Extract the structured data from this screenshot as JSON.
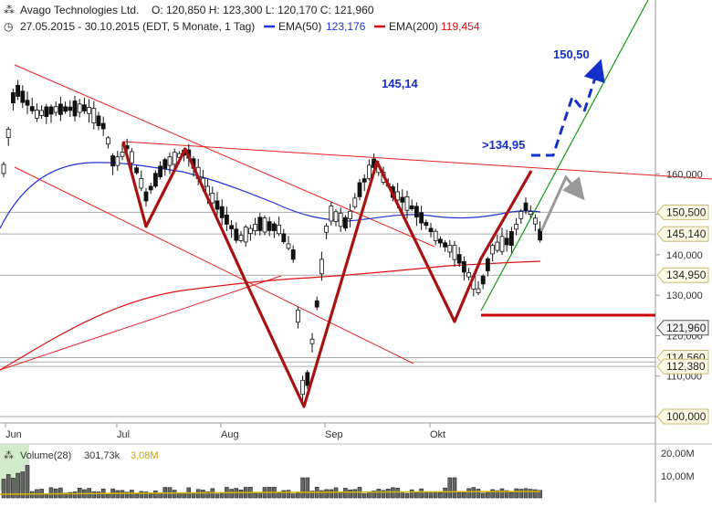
{
  "header": {
    "instrument": "Avago Technologies Ltd.",
    "ohlc": "O: 120,850  H: 123,300  L: 120,170  C: 121,960",
    "range": "27.05.2015 - 30.10.2015 (EDT, 5 Monate, 1 Tag)",
    "ema50_label": "EMA(50)",
    "ema50_value": "123,176",
    "ema200_label": "EMA(200)",
    "ema200_value": "119,454"
  },
  "volume_panel": {
    "title": "Volume(28)",
    "value1": "301,73k",
    "value2": "3,08M",
    "ticks": [
      "20,00M",
      "10,00M"
    ]
  },
  "annotations": [
    {
      "text": "150,50",
      "color": "#1530c8"
    },
    {
      "text": "145,14",
      "color": "#1530c8"
    },
    {
      "text": ">134,95",
      "color": "#1530c8"
    }
  ],
  "colors": {
    "ema50": "#2233dd",
    "ema200": "#dd1111",
    "zigzag": "#aa1111",
    "trendline": "#ee2222",
    "uptrend": "#119911",
    "projection": "#1530c8",
    "arrow_gray": "#999999",
    "support": "#cc0000"
  },
  "chart_data": {
    "type": "candlestick",
    "title": "Avago Technologies Ltd.",
    "x_tick_labels": [
      "Jun",
      "Jul",
      "Aug",
      "Sep",
      "Okt"
    ],
    "ylim": [
      98,
      161
    ],
    "y_ticks": [
      100,
      110,
      120,
      130,
      140,
      150,
      160
    ],
    "y_tick_labels": [
      "100,000",
      "110,000",
      "120,000",
      "130,000",
      "140,000",
      "150,000",
      "160,000"
    ],
    "price_boxes": [
      {
        "label": "150,500",
        "value": 150.5
      },
      {
        "label": "145,140",
        "value": 145.14
      },
      {
        "label": "134,950",
        "value": 134.95
      },
      {
        "label": "121,960",
        "value": 121.96,
        "current": true
      },
      {
        "label": "114,560",
        "value": 114.56
      },
      {
        "label": "112,380",
        "value": 112.38
      },
      {
        "label": "100,000",
        "value": 100.0
      }
    ],
    "horizontal_lines": [
      150.5,
      145.14,
      134.95,
      114.56,
      113.5,
      112.38,
      100.0
    ],
    "grid": false,
    "series": [
      {
        "name": "EMA(50)"
      },
      {
        "name": "EMA(200)"
      }
    ]
  }
}
